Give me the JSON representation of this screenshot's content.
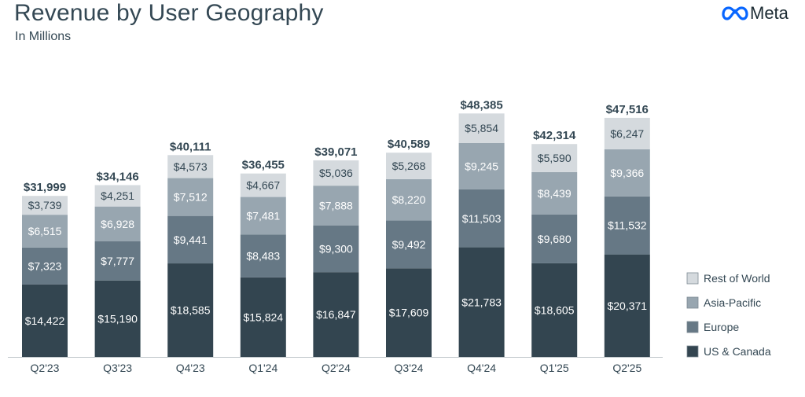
{
  "header": {
    "title": "Revenue by User Geography",
    "subtitle": "In Millions",
    "brand": "Meta"
  },
  "colors": {
    "us_canada": "#334550",
    "europe": "#667885",
    "asia_pacific": "#98a6b0",
    "rest_of_world": "#d5dade",
    "text_dark": "#344854",
    "axis": "#bfc5c9",
    "brand_blue": "#0866ff"
  },
  "chart_data": {
    "type": "bar",
    "stacked": true,
    "categories": [
      "Q2'23",
      "Q3'23",
      "Q4'23",
      "Q1'24",
      "Q2'24",
      "Q3'24",
      "Q4'24",
      "Q1'25",
      "Q2'25"
    ],
    "series": [
      {
        "name": "US & Canada",
        "color": "#334550",
        "values": [
          14422,
          15190,
          18585,
          15824,
          16847,
          17609,
          21783,
          18605,
          20371
        ],
        "labels": [
          "$14,422",
          "$15,190",
          "$18,585",
          "$15,824",
          "$16,847",
          "$17,609",
          "$21,783",
          "$18,605",
          "$20,371"
        ]
      },
      {
        "name": "Europe",
        "color": "#667885",
        "values": [
          7323,
          7777,
          9441,
          8483,
          9300,
          9492,
          11503,
          9680,
          11532
        ],
        "labels": [
          "$7,323",
          "$7,777",
          "$9,441",
          "$8,483",
          "$9,300",
          "$9,492",
          "$11,503",
          "$9,680",
          "$11,532"
        ]
      },
      {
        "name": "Asia-Pacific",
        "color": "#98a6b0",
        "values": [
          6515,
          6928,
          7512,
          7481,
          7888,
          8220,
          9245,
          8439,
          9366
        ],
        "labels": [
          "$6,515",
          "$6,928",
          "$7,512",
          "$7,481",
          "$7,888",
          "$8,220",
          "$9,245",
          "$8,439",
          "$9,366"
        ]
      },
      {
        "name": "Rest of World",
        "color": "#d5dade",
        "values": [
          3739,
          4251,
          4573,
          4667,
          5036,
          5268,
          5854,
          5590,
          6247
        ],
        "labels": [
          "$3,739",
          "$4,251",
          "$4,573",
          "$4,667",
          "$5,036",
          "$5,268",
          "$5,854",
          "$5,590",
          "$6,247"
        ]
      }
    ],
    "totals": [
      31999,
      34146,
      40111,
      36455,
      39071,
      40589,
      48385,
      42314,
      47516
    ],
    "total_labels": [
      "$31,999",
      "$34,146",
      "$40,111",
      "$36,455",
      "$39,071",
      "$40,589",
      "$48,385",
      "$42,314",
      "$47,516"
    ],
    "legend": [
      "Rest of World",
      "Asia-Pacific",
      "Europe",
      "US & Canada"
    ],
    "legend_position": "right",
    "ylim": [
      0,
      55000
    ],
    "grid": false
  }
}
